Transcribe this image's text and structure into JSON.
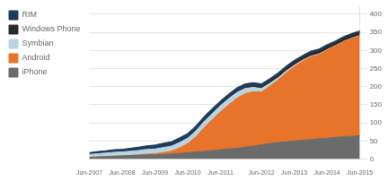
{
  "chart_data": {
    "type": "area",
    "stacked": true,
    "grid": true,
    "legend": "left",
    "categories": [
      "Jun-2007",
      null,
      null,
      null,
      "Jun-2008",
      null,
      null,
      null,
      "Jun-2009",
      null,
      null,
      null,
      "Jun-2010",
      null,
      null,
      null,
      "Jun-2011",
      null,
      null,
      null,
      null,
      "Jun-2012",
      null,
      null,
      null,
      "Jun-2013",
      null,
      null,
      null,
      "Jun-2014",
      null,
      null,
      null,
      "Jun-2015"
    ],
    "series": [
      {
        "name": "iPhone",
        "color": "#6b6b6b",
        "values": [
          5,
          6,
          7,
          8,
          9,
          10,
          11,
          12,
          12,
          13,
          14,
          16,
          18,
          20,
          22,
          24,
          26,
          28,
          30,
          33,
          36,
          40,
          43,
          46,
          48,
          50,
          52,
          54,
          56,
          58,
          60,
          62,
          63,
          65
        ]
      },
      {
        "name": "Android",
        "color": "#e8732a",
        "values": [
          0,
          0,
          0,
          0,
          0,
          0,
          1,
          2,
          3,
          5,
          8,
          15,
          25,
          42,
          65,
          85,
          105,
          122,
          138,
          148,
          150,
          145,
          158,
          172,
          190,
          205,
          218,
          228,
          232,
          242,
          252,
          262,
          270,
          275
        ]
      },
      {
        "name": "Symbian",
        "color": "#b8d4e0",
        "values": [
          8,
          9,
          10,
          11,
          11,
          12,
          12,
          13,
          13,
          14,
          14,
          15,
          15,
          16,
          17,
          17,
          17,
          17,
          16,
          14,
          12,
          10,
          8,
          6,
          5,
          4,
          3,
          2,
          2,
          2,
          1,
          1,
          1,
          1
        ]
      },
      {
        "name": "Windows Phone",
        "color": "#2a2a2a",
        "values": [
          0,
          0,
          0,
          0,
          0,
          0,
          0,
          0,
          0,
          0,
          0,
          0,
          0,
          0,
          0,
          0,
          0,
          1,
          2,
          3,
          4,
          5,
          6,
          7,
          8,
          8,
          8,
          9,
          9,
          9,
          9,
          9,
          9,
          9
        ]
      },
      {
        "name": "RIM",
        "color": "#1e3a5c",
        "values": [
          5,
          6,
          6,
          7,
          7,
          8,
          9,
          10,
          11,
          12,
          12,
          13,
          13,
          14,
          14,
          14,
          13,
          12,
          11,
          10,
          9,
          8,
          7,
          7,
          6,
          6,
          5,
          5,
          5,
          5,
          4,
          4,
          4,
          4
        ]
      }
    ],
    "ylim": [
      0,
      420
    ],
    "yticks": [
      0,
      50,
      100,
      150,
      200,
      250,
      300,
      350,
      400
    ]
  }
}
